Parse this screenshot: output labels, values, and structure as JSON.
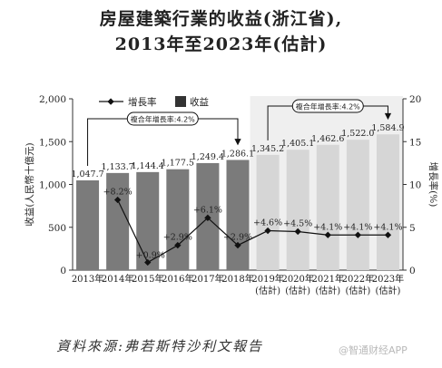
{
  "title_line1": "房屋建築行業的收益(浙江省),",
  "title_line2": "2013年至2023年(估計)",
  "source": "資料來源:弗若斯特沙利文報告",
  "watermark": "@智通财经APP",
  "chart_data": {
    "type": "bar",
    "categories": [
      "2013年",
      "2014年",
      "2015年",
      "2016年",
      "2017年",
      "2018年",
      "2019年\n(估計)",
      "2020年\n(估計)",
      "2021年\n(估計)",
      "2022年\n(估計)",
      "2023年\n(估計)"
    ],
    "ylabel_left": "收益(人民幣十億元)",
    "ylabel_right": "增長率(%)",
    "ylim_left": [
      0,
      2000
    ],
    "ylim_right": [
      0,
      20
    ],
    "yticks_left": [
      "0",
      "500",
      "1,000",
      "1,500",
      "2,000"
    ],
    "yticks_right": [
      "0",
      "5",
      "10",
      "15",
      "20"
    ],
    "series": [
      {
        "name": "收益",
        "kind": "bar",
        "values": [
          1047.7,
          1133.7,
          1144.4,
          1177.5,
          1249.4,
          1286.1,
          1345.2,
          1405.1,
          1462.6,
          1522.0,
          1584.9
        ],
        "labels": [
          "1,047.7",
          "1,133.7",
          "1,144.4",
          "1,177.5",
          "1,249.4",
          "1,286.1",
          "1,345.2",
          "1,405.1",
          "1,462.6",
          "1,522.0",
          "1,584.9"
        ],
        "colors": [
          "#7b7b7b",
          "#7b7b7b",
          "#7b7b7b",
          "#7b7b7b",
          "#7b7b7b",
          "#7b7b7b",
          "#d6d6d6",
          "#d6d6d6",
          "#d6d6d6",
          "#d6d6d6",
          "#d6d6d6"
        ]
      },
      {
        "name": "增長率",
        "kind": "line",
        "values": [
          null,
          8.2,
          0.9,
          2.9,
          6.1,
          2.9,
          4.6,
          4.5,
          4.1,
          4.1,
          4.1
        ],
        "labels": [
          "",
          "+8.2%",
          "+0.9%",
          "+2.9%",
          "+6.1%",
          "+2.9%",
          "+4.6%",
          "+4.5%",
          "+4.1%",
          "+4.1%",
          "+4.1%"
        ]
      }
    ],
    "legend": {
      "position": "top",
      "line_label": "增長率",
      "bar_label": "收益"
    },
    "cagr_annotations": [
      {
        "label": "複合年增長率:4.2%",
        "from": 0,
        "to": 5
      },
      {
        "label": "複合年增長率:4.2%",
        "from": 6,
        "to": 10
      }
    ],
    "forecast_shading": true
  }
}
